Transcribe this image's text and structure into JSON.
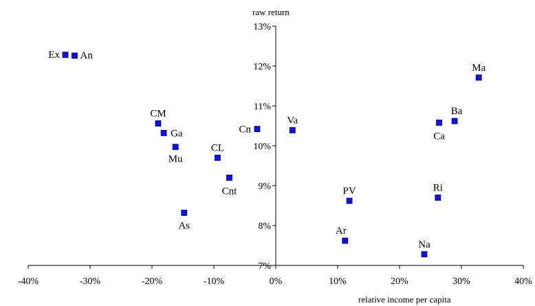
{
  "chart_data": {
    "type": "scatter",
    "title": "",
    "xlabel": "relative income per capita",
    "ylabel": "raw return",
    "xlim": [
      -40,
      40
    ],
    "ylim": [
      7,
      13
    ],
    "x_unit": "%",
    "y_unit": "%",
    "x_ticks": [
      "-40%",
      "-30%",
      "-20%",
      "-10%",
      "0%",
      "10%",
      "20%",
      "30%",
      "40%"
    ],
    "y_ticks": [
      "7%",
      "8%",
      "9%",
      "10%",
      "11%",
      "12%",
      "13%"
    ],
    "grid": false,
    "legend": "none",
    "marker_color": "#1010e0",
    "points": [
      {
        "label": "Ex",
        "x": -34.0,
        "y": 12.28
      },
      {
        "label": "An",
        "x": -32.5,
        "y": 12.26
      },
      {
        "label": "CM",
        "x": -19.0,
        "y": 10.56
      },
      {
        "label": "Ga",
        "x": -18.1,
        "y": 10.32
      },
      {
        "label": "Mu",
        "x": -16.2,
        "y": 9.97
      },
      {
        "label": "CL",
        "x": -9.4,
        "y": 9.7
      },
      {
        "label": "Cnt",
        "x": -7.5,
        "y": 9.2
      },
      {
        "label": "As",
        "x": -14.8,
        "y": 8.32
      },
      {
        "label": "Cn",
        "x": -3.0,
        "y": 10.42
      },
      {
        "label": "Va",
        "x": 2.7,
        "y": 10.39
      },
      {
        "label": "PV",
        "x": 11.9,
        "y": 8.62
      },
      {
        "label": "Ar",
        "x": 11.2,
        "y": 7.62
      },
      {
        "label": "Na",
        "x": 24.0,
        "y": 7.28
      },
      {
        "label": "Ri",
        "x": 26.2,
        "y": 8.7
      },
      {
        "label": "Ca",
        "x": 26.4,
        "y": 10.58
      },
      {
        "label": "Ba",
        "x": 28.9,
        "y": 10.62
      },
      {
        "label": "Ma",
        "x": 32.8,
        "y": 11.71
      }
    ]
  }
}
